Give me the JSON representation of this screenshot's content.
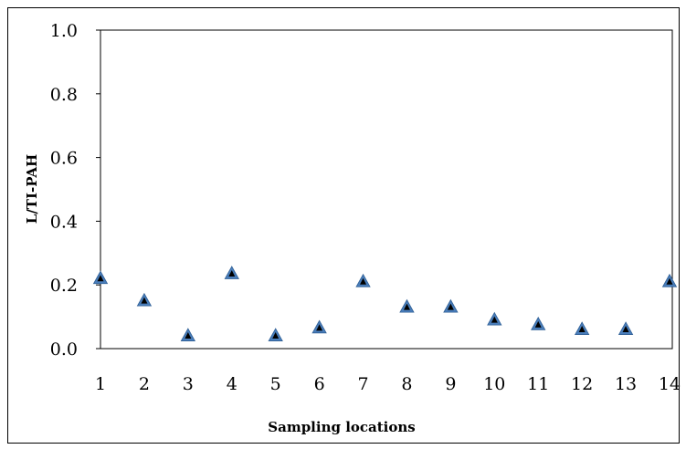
{
  "chart_data": {
    "type": "scatter",
    "xlabel": "Sampling locations",
    "ylabel": "L/TI-PAH",
    "x": [
      1,
      2,
      3,
      4,
      5,
      6,
      7,
      8,
      9,
      10,
      11,
      12,
      13,
      14
    ],
    "series": [
      {
        "marker": "triangle",
        "values": [
          0.22,
          0.15,
          0.04,
          0.235,
          0.04,
          0.065,
          0.21,
          0.13,
          0.13,
          0.09,
          0.075,
          0.06,
          0.06,
          0.21
        ]
      }
    ],
    "xticks": [
      "1",
      "2",
      "3",
      "4",
      "5",
      "6",
      "7",
      "8",
      "9",
      "10",
      "11",
      "12",
      "13",
      "14"
    ],
    "yticks": [
      "0.0",
      "0.2",
      "0.4",
      "0.6",
      "0.8",
      "1.0"
    ],
    "ylim": [
      0,
      1
    ],
    "grid": false,
    "colors": {
      "marker_fill": "#4a7ebb",
      "marker_core": "#000000"
    }
  }
}
